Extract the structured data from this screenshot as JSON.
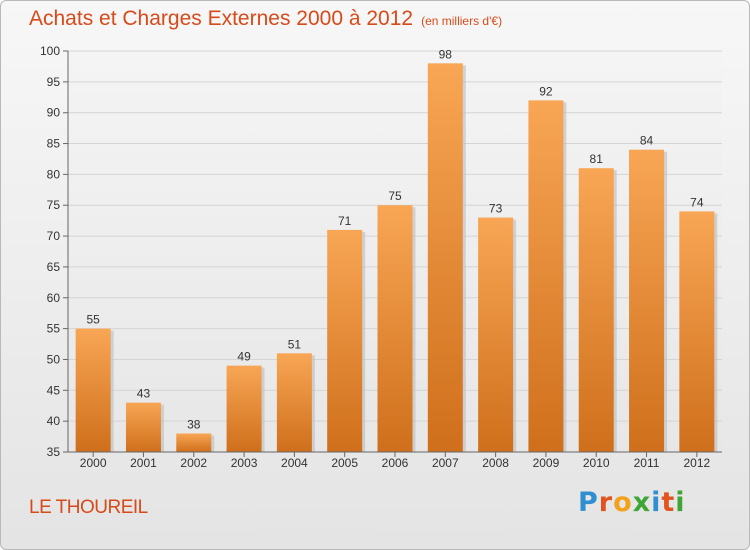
{
  "header": {
    "title": "Achats et Charges Externes 2000 à 2012",
    "subtitle": "(en milliers d'€)"
  },
  "footer": {
    "commune": "LE THOUREIL",
    "logo_text": "Proxiti"
  },
  "colors": {
    "title": "#d84a1a",
    "bar_top": "#f8a655",
    "bar_bottom": "#cf6f1b"
  },
  "chart_data": {
    "type": "bar",
    "title": "Achats et Charges Externes 2000 à 2012",
    "subtitle": "(en milliers d'€)",
    "categories": [
      "2000",
      "2001",
      "2002",
      "2003",
      "2004",
      "2005",
      "2006",
      "2007",
      "2008",
      "2009",
      "2010",
      "2011",
      "2012"
    ],
    "values": [
      55,
      43,
      38,
      49,
      51,
      71,
      75,
      98,
      73,
      92,
      81,
      84,
      74
    ],
    "ylim": [
      35,
      100
    ],
    "yticks": [
      35,
      40,
      45,
      50,
      55,
      60,
      65,
      70,
      75,
      80,
      85,
      90,
      95,
      100
    ],
    "grid": true,
    "legend": "none",
    "data_labels": true
  }
}
